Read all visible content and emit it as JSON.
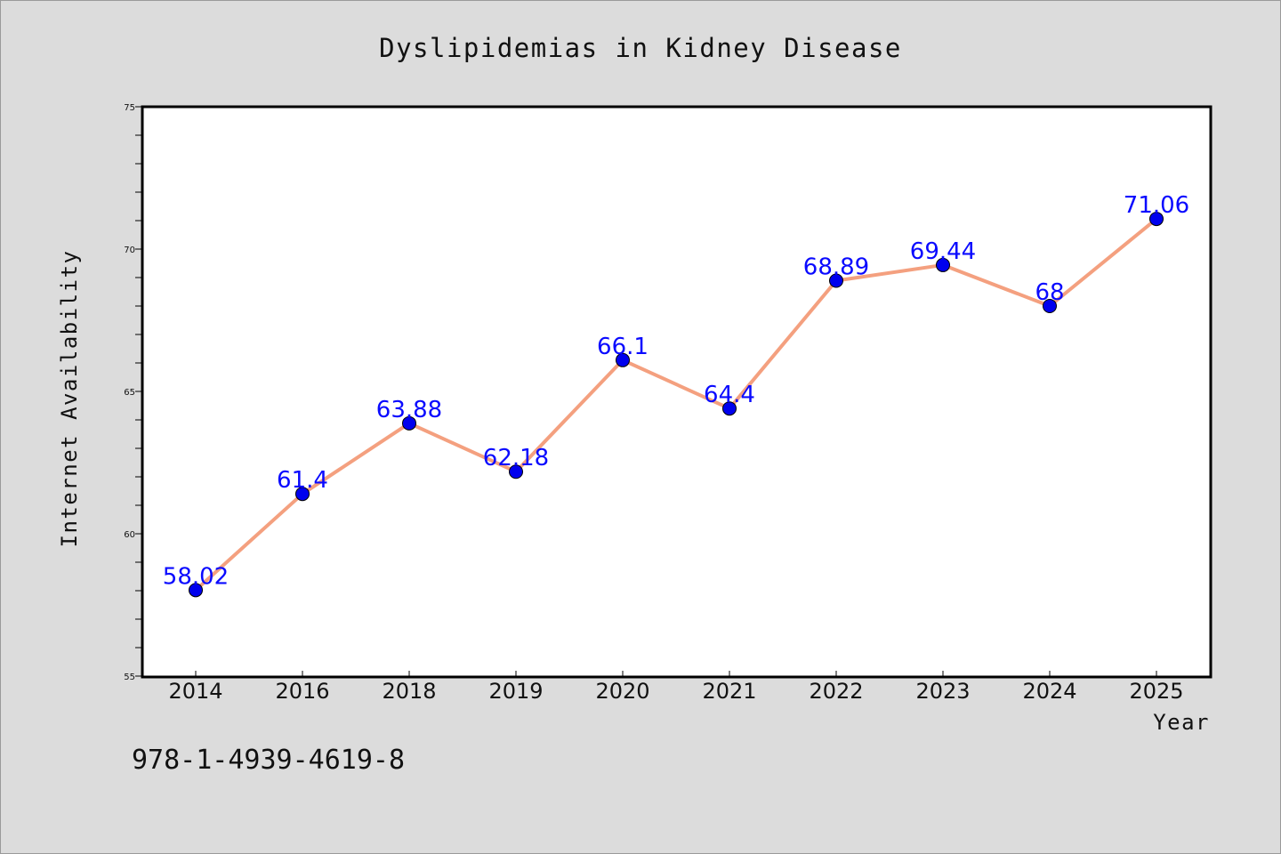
{
  "chart_data": {
    "type": "line",
    "title": "Dyslipidemias in Kidney Disease",
    "xlabel": "Year",
    "ylabel": "Internet Availability",
    "categories": [
      "2014",
      "2016",
      "2018",
      "2019",
      "2020",
      "2021",
      "2022",
      "2023",
      "2024",
      "2025"
    ],
    "series": [
      {
        "values": [
          58.02,
          61.4,
          63.88,
          62.18,
          66.1,
          64.4,
          68.89,
          69.44,
          68,
          71.06
        ]
      }
    ],
    "data_labels": [
      "58.02",
      "61.4",
      "63.88",
      "62.18",
      "66.1",
      "64.4",
      "68.89",
      "69.44",
      "68",
      "71.06"
    ],
    "ylim": [
      55,
      75
    ],
    "yticks": [
      "55",
      "60",
      "65",
      "70",
      "75"
    ],
    "grid": false,
    "line_color": "#f4a07f",
    "marker_color": "#0000ee",
    "label_color": "#0a0aff"
  },
  "footnote": "978-1-4939-4619-8"
}
